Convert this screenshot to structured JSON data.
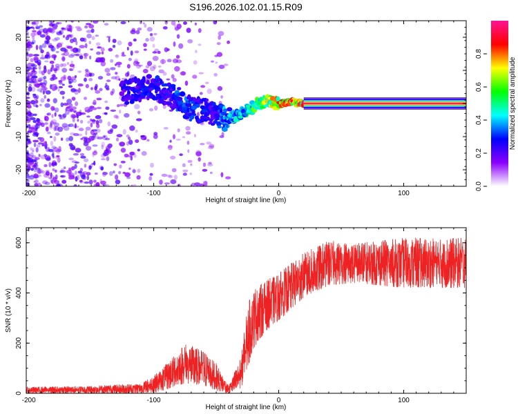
{
  "title": "S196.2026.102.01.15.R09",
  "chart_data": [
    {
      "type": "heatmap",
      "name": "spectrogram",
      "xlabel": "Height of straight line (km)",
      "ylabel": "Frequency (Hz)",
      "xlim": [
        -202,
        150
      ],
      "ylim": [
        -25,
        25
      ],
      "xticks": [
        -200,
        -100,
        0,
        100
      ],
      "yticks": [
        -20,
        -10,
        0,
        10,
        20
      ],
      "colorbar": {
        "label": "Normalized spectral amplitude",
        "range": [
          0.0,
          1.0
        ],
        "ticks": [
          "0.0",
          "0.2",
          "0.4",
          "0.6",
          "0.8"
        ],
        "colormap": [
          "#ffffff",
          "#8b00ff",
          "#0000ff",
          "#00ffff",
          "#00ff00",
          "#ffff00",
          "#ff0000",
          "#ff1493"
        ]
      },
      "signal_track": [
        {
          "x": -125,
          "f": 3,
          "a": 0.25
        },
        {
          "x": -115,
          "f": 4,
          "a": 0.3
        },
        {
          "x": -100,
          "f": 5,
          "a": 0.3
        },
        {
          "x": -90,
          "f": 3,
          "a": 0.3
        },
        {
          "x": -80,
          "f": 1,
          "a": 0.35
        },
        {
          "x": -70,
          "f": -2,
          "a": 0.35
        },
        {
          "x": -60,
          "f": -2,
          "a": 0.3
        },
        {
          "x": -50,
          "f": -3,
          "a": 0.3
        },
        {
          "x": -40,
          "f": -5,
          "a": 0.45
        },
        {
          "x": -30,
          "f": -3,
          "a": 0.5
        },
        {
          "x": -20,
          "f": -1,
          "a": 0.6
        },
        {
          "x": -10,
          "f": 1,
          "a": 0.7
        },
        {
          "x": 0,
          "f": 0,
          "a": 0.85
        },
        {
          "x": 10,
          "f": 0.5,
          "a": 0.9
        },
        {
          "x": 20,
          "f": 0,
          "a": 0.95
        },
        {
          "x": 150,
          "f": 0,
          "a": 0.95
        }
      ],
      "noise_region": {
        "x_from": -202,
        "x_to": -40,
        "strength": "decreasing"
      }
    },
    {
      "type": "line",
      "name": "snr",
      "xlabel": "Height of straight line (km)",
      "ylabel": "SNR (10 * v/v)",
      "xlim": [
        -202,
        150
      ],
      "ylim": [
        0,
        660
      ],
      "xticks": [
        -200,
        -100,
        0,
        100
      ],
      "yticks": [
        0,
        200,
        400,
        600
      ],
      "color": "#ee2222",
      "envelope": [
        {
          "x": -202,
          "low": 0,
          "high": 25
        },
        {
          "x": -150,
          "low": 0,
          "high": 30
        },
        {
          "x": -110,
          "low": 0,
          "high": 40
        },
        {
          "x": -95,
          "low": 5,
          "high": 90
        },
        {
          "x": -75,
          "low": 40,
          "high": 200
        },
        {
          "x": -60,
          "low": 30,
          "high": 170
        },
        {
          "x": -50,
          "low": 10,
          "high": 120
        },
        {
          "x": -40,
          "low": 0,
          "high": 30
        },
        {
          "x": -30,
          "low": 20,
          "high": 150
        },
        {
          "x": -25,
          "low": 100,
          "high": 350
        },
        {
          "x": -20,
          "low": 180,
          "high": 420
        },
        {
          "x": -10,
          "low": 250,
          "high": 450
        },
        {
          "x": 0,
          "low": 290,
          "high": 480
        },
        {
          "x": 20,
          "low": 380,
          "high": 560
        },
        {
          "x": 40,
          "low": 430,
          "high": 610
        },
        {
          "x": 60,
          "low": 440,
          "high": 600
        },
        {
          "x": 100,
          "low": 420,
          "high": 620
        },
        {
          "x": 150,
          "low": 420,
          "high": 620
        }
      ]
    }
  ]
}
